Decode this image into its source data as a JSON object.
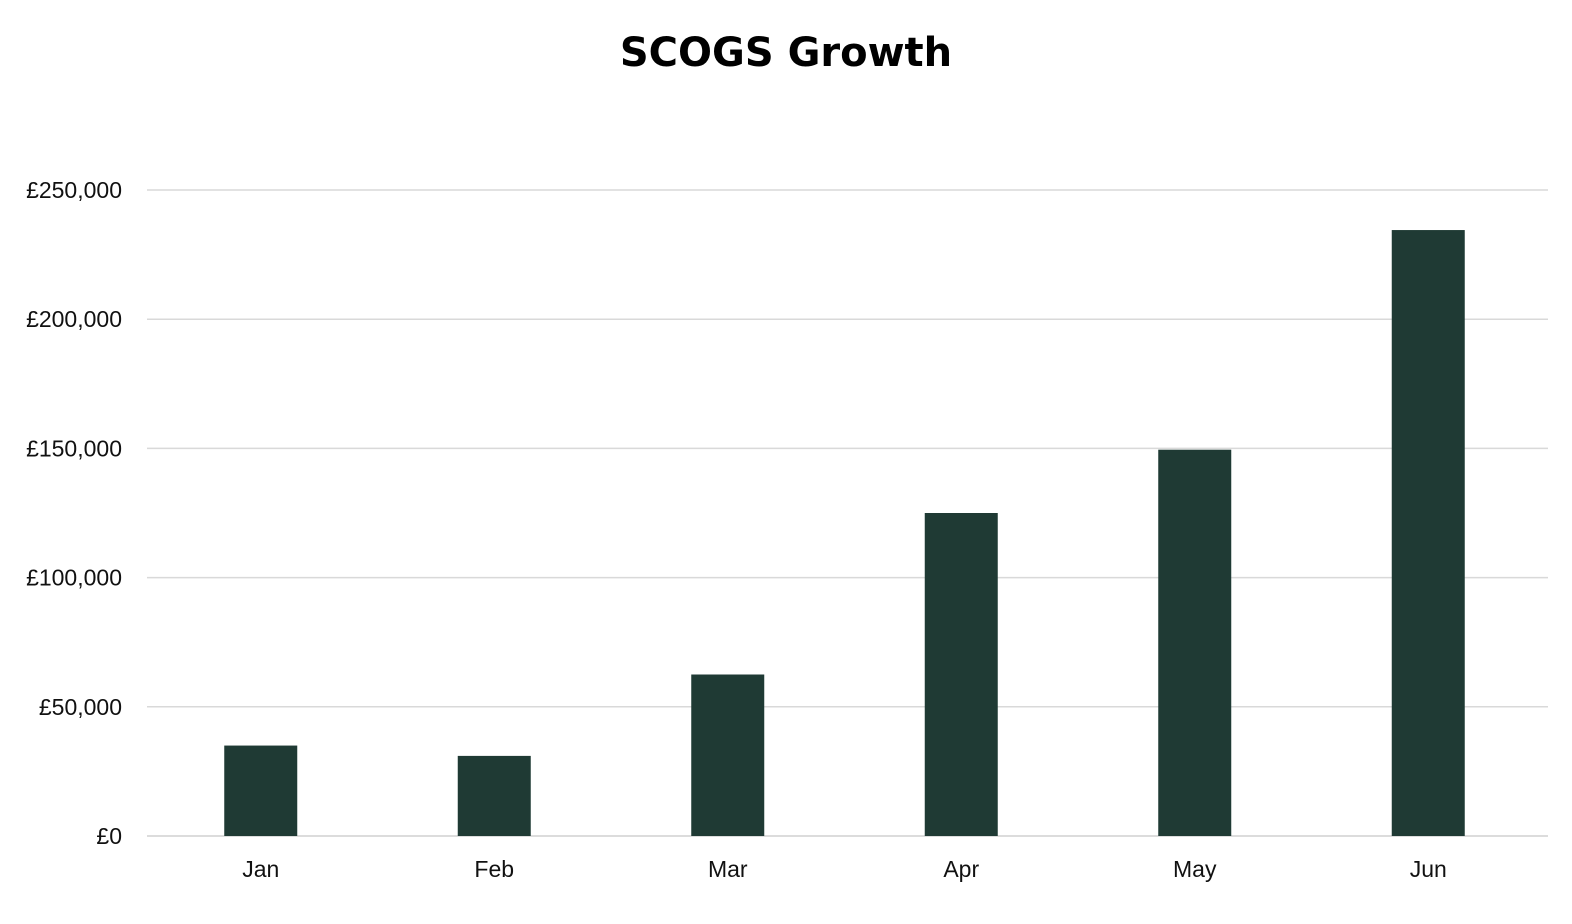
{
  "chart_data": {
    "type": "bar",
    "title": "SCOGS Growth",
    "xlabel": "",
    "ylabel": "",
    "categories": [
      "Jan",
      "Feb",
      "Mar",
      "Apr",
      "May",
      "Jun"
    ],
    "values": [
      35000,
      31000,
      62500,
      125000,
      149500,
      234500
    ],
    "ylim": [
      0,
      250000
    ],
    "yticks": [
      0,
      50000,
      100000,
      150000,
      200000,
      250000
    ],
    "ytick_labels": [
      "£0",
      "£50,000",
      "£100,000",
      "£150,000",
      "£200,000",
      "£250,000"
    ],
    "grid": true,
    "legend": "none",
    "colors": {
      "bar": "#1f3a34",
      "grid": "#d9d9d9",
      "axis": "#d0d0d0",
      "text": "#111111"
    }
  }
}
